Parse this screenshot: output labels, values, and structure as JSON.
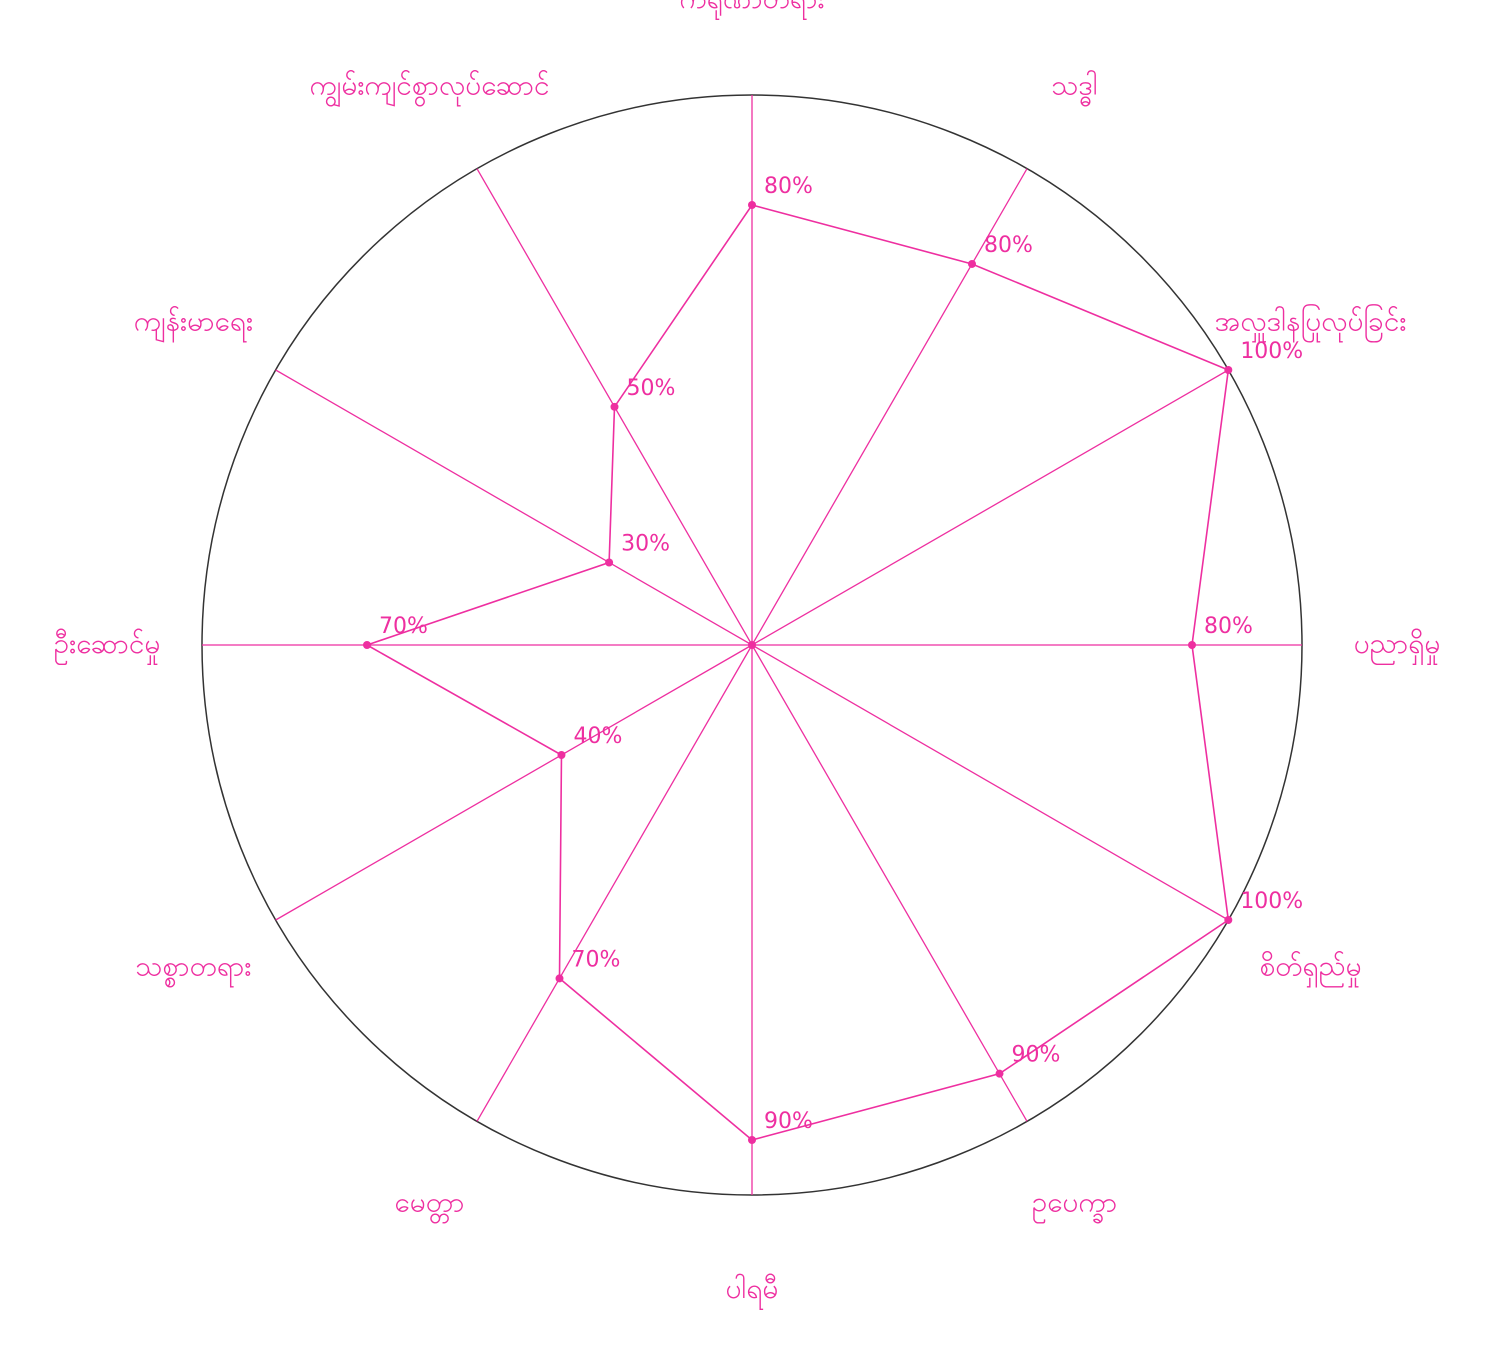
{
  "chart_data": {
    "type": "radar",
    "categories": [
      "ကရုဏာတရား",
      "သဒ္ဓါ",
      "အလှူဒါနပြုလုပ်ခြင်း",
      "ပညာရှိမှု",
      "စိတ်ရှည်မှု",
      "ဥပေက္ခာ",
      "ပါရမီ",
      "မေတ္တာ",
      "သစ္စာတရား",
      "ဦးဆောင်မှု",
      "ကျန်းမာရေး",
      "ကျွမ်းကျင်စွာလုပ်ဆောင်"
    ],
    "values": [
      80,
      80,
      100,
      80,
      100,
      90,
      90,
      70,
      40,
      70,
      30,
      50
    ],
    "value_labels": [
      "80%",
      "80%",
      "100%",
      "80%",
      "100%",
      "90%",
      "90%",
      "70%",
      "40%",
      "70%",
      "30%",
      "50%"
    ],
    "ylim": [
      0,
      100
    ],
    "color": "#ee2fa0"
  }
}
